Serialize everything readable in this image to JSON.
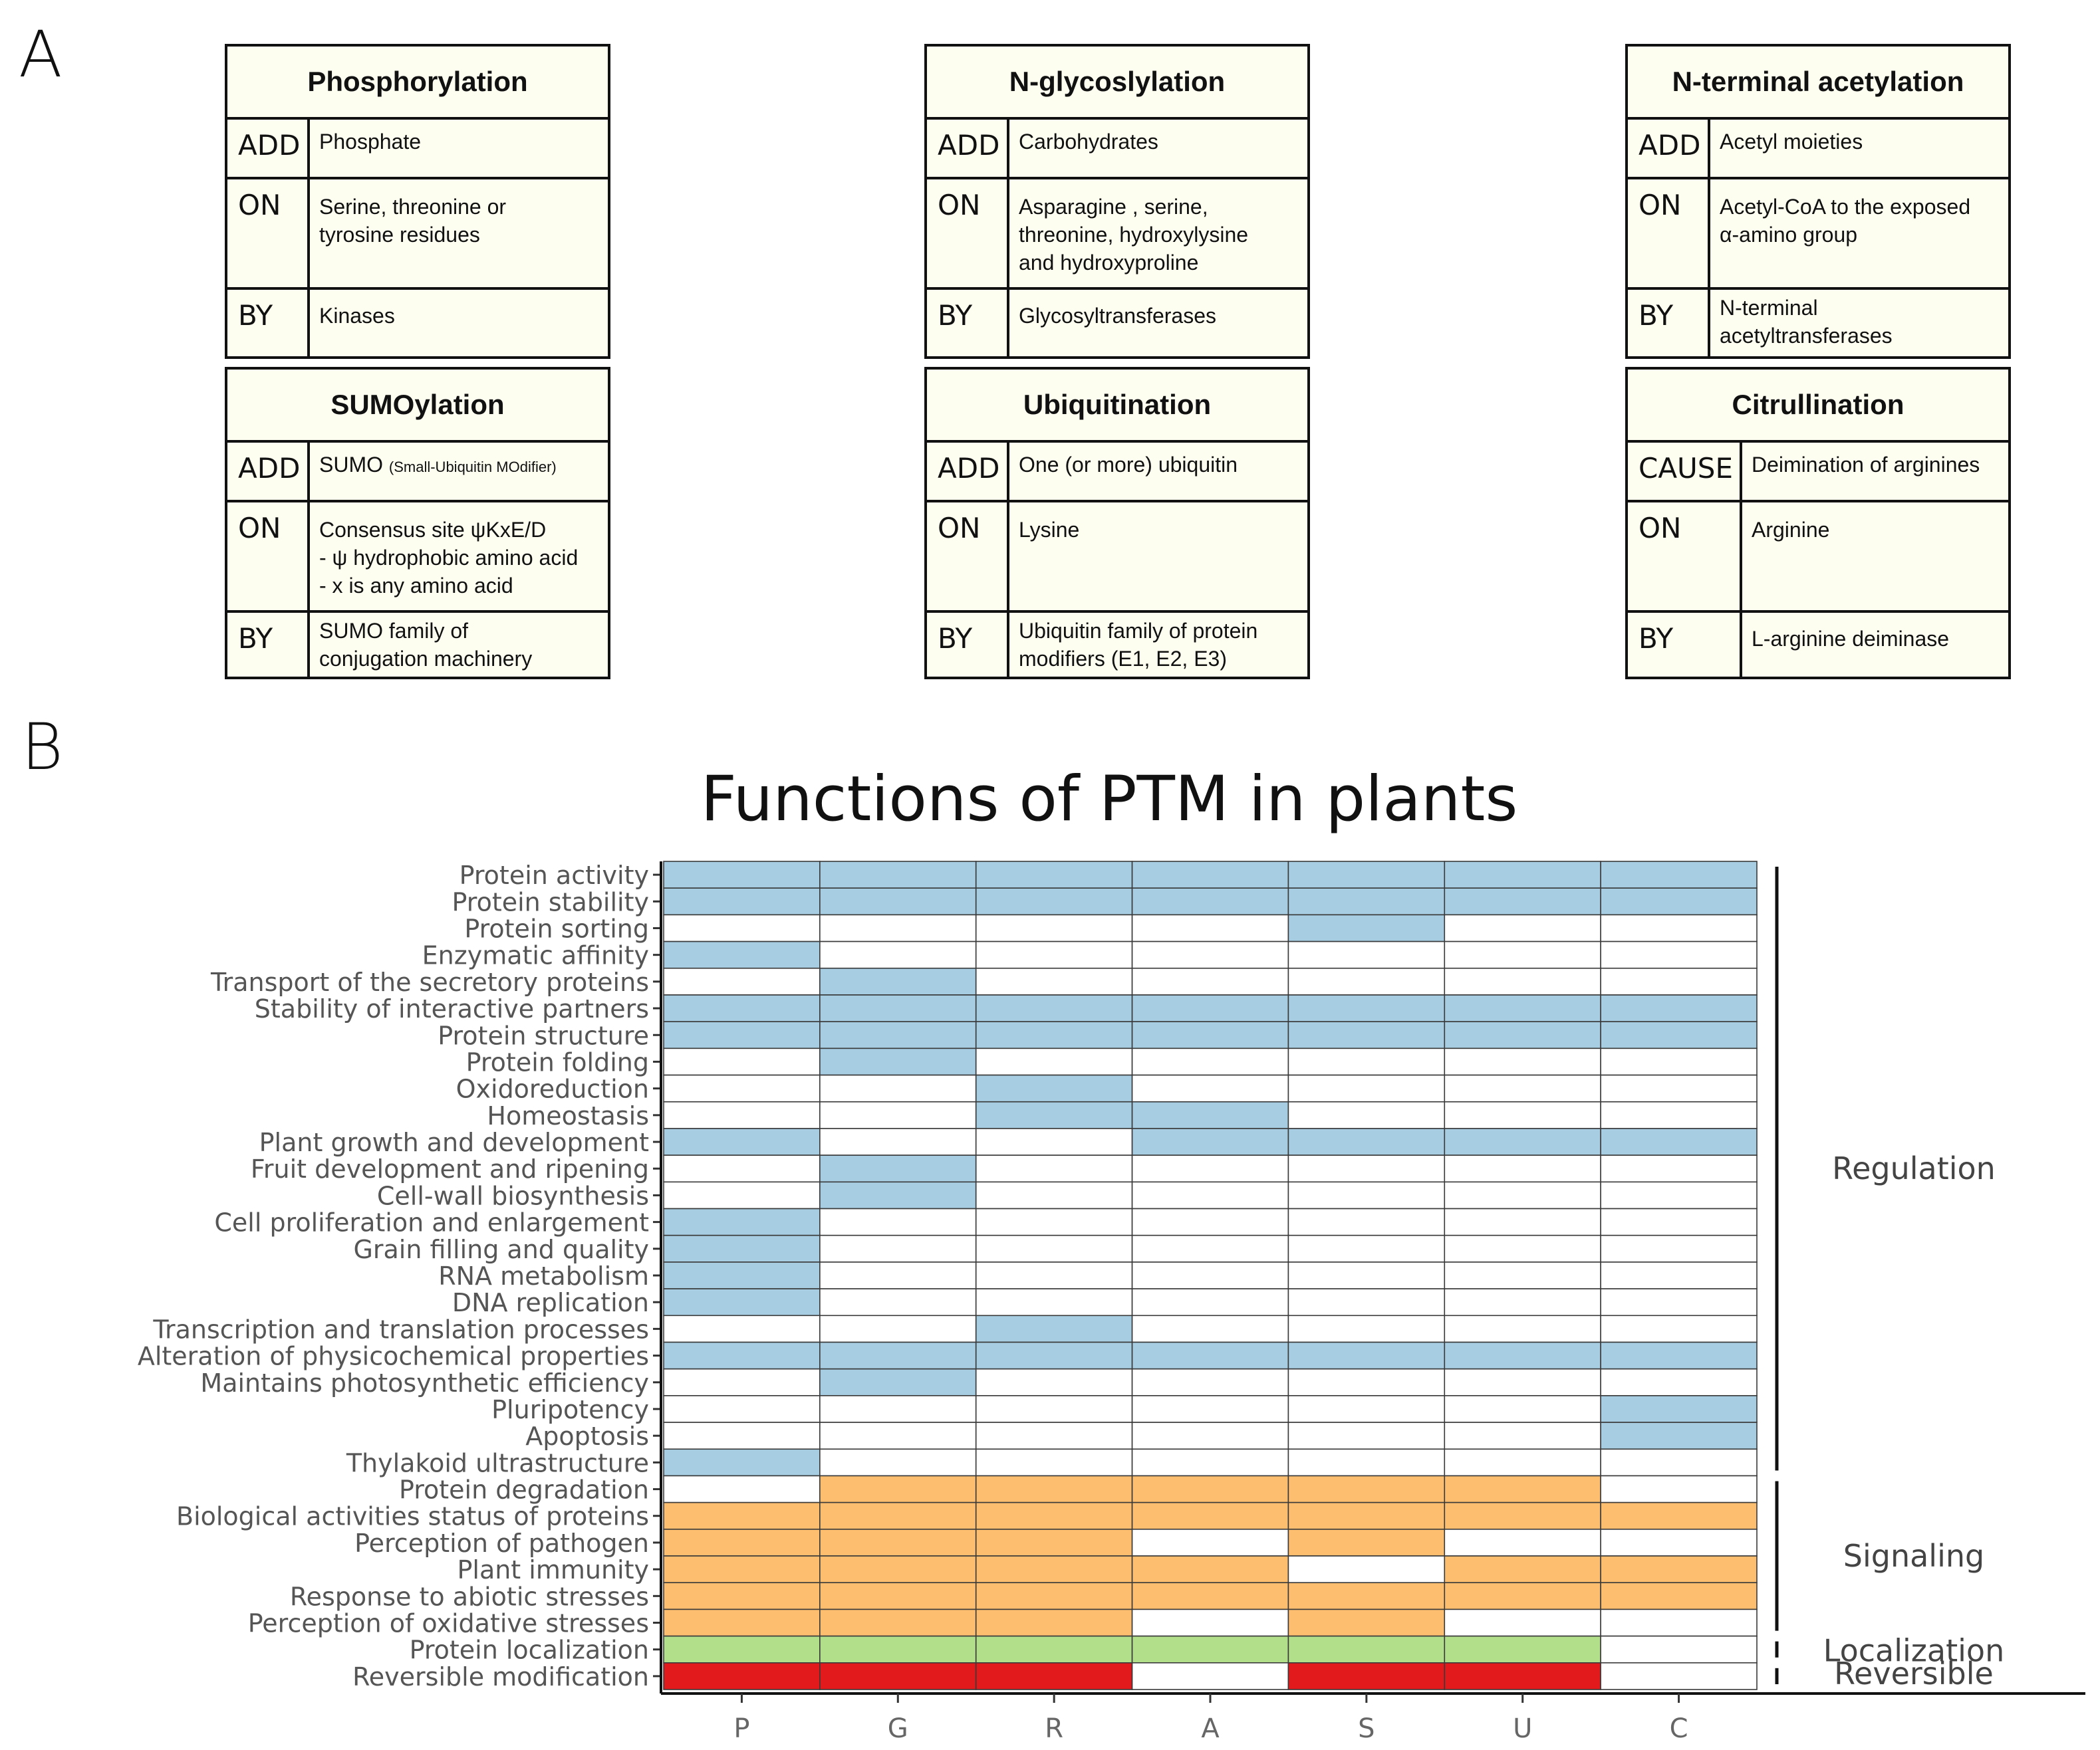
{
  "panel_a_label": "A",
  "panel_b_label": "B",
  "ptm_cards": [
    {
      "title": "Phosphorylation",
      "rows": [
        {
          "label": "ADD",
          "value": "Phosphate"
        },
        {
          "label": "ON",
          "value": "Serine, threonine or\ntyrosine residues"
        },
        {
          "label": "BY",
          "value": "Kinases"
        }
      ]
    },
    {
      "title": "N-glycoslylation",
      "rows": [
        {
          "label": "ADD",
          "value": "Carbohydrates"
        },
        {
          "label": "ON",
          "value": "Asparagine , serine,\nthreonine, hydroxylysine\nand hydroxyproline"
        },
        {
          "label": "BY",
          "value": "Glycosyltransferases"
        }
      ]
    },
    {
      "title": "N-terminal acetylation",
      "rows": [
        {
          "label": "ADD",
          "value": "Acetyl moieties"
        },
        {
          "label": "ON",
          "value": "Acetyl-CoA to the exposed\nα-amino group"
        },
        {
          "label": "BY",
          "value": "N-terminal\nacetyltransferases"
        }
      ]
    },
    {
      "title": "SUMOylation",
      "rows": [
        {
          "label": "ADD",
          "value": "SUMO",
          "note": "(Small-Ubiquitin MOdifier)"
        },
        {
          "label": "ON",
          "value": "Consensus site ψKxE/D\n- ψ hydrophobic amino acid\n- x is any amino acid"
        },
        {
          "label": "BY",
          "value": "SUMO family of\nconjugation machinery"
        }
      ]
    },
    {
      "title": "Ubiquitination",
      "rows": [
        {
          "label": "ADD",
          "value": "One (or more) ubiquitin"
        },
        {
          "label": "ON",
          "value": "Lysine"
        },
        {
          "label": "BY",
          "value": "Ubiquitin family of protein\nmodifiers (E1, E2, E3)"
        }
      ]
    },
    {
      "title": "Citrullination",
      "rows": [
        {
          "label": "CAUSE",
          "value": "Deimination of arginines"
        },
        {
          "label": "ON",
          "value": "Arginine"
        },
        {
          "label": "BY",
          "value": "L-arginine deiminase"
        }
      ]
    }
  ],
  "chart_data": {
    "type": "heatmap",
    "title": "Functions of PTM in plants",
    "columns": [
      "P",
      "G",
      "R",
      "A",
      "S",
      "U",
      "C"
    ],
    "rows": [
      "Protein activity",
      "Protein stability",
      "Protein sorting",
      "Enzymatic affinity",
      "Transport of the secretory proteins",
      "Stability of interactive partners",
      "Protein structure",
      "Protein folding",
      "Oxidoreduction",
      "Homeostasis",
      "Plant growth and development",
      "Fruit development and ripening",
      "Cell-wall biosynthesis",
      "Cell  proliferation  and  enlargement",
      "Grain  filling  and  quality",
      "RNA metabolism",
      "DNA  replication",
      "Transcription and translation processes",
      "Alteration of physicochemical properties",
      "Maintains photosynthetic efficiency",
      "Pluripotency",
      "Apoptosis",
      "Thylakoid ultrastructure",
      "Protein degradation",
      "Biological activities status of proteins",
      "Perception of pathogen",
      "Plant immunity",
      "Response to abiotic stresses",
      "Perception of oxidative stresses",
      "Protein localization",
      "Reversible modification"
    ],
    "matrix": [
      [
        1,
        1,
        1,
        1,
        1,
        1,
        1
      ],
      [
        1,
        1,
        1,
        1,
        1,
        1,
        1
      ],
      [
        0,
        0,
        0,
        0,
        1,
        0,
        0
      ],
      [
        1,
        0,
        0,
        0,
        0,
        0,
        0
      ],
      [
        0,
        1,
        0,
        0,
        0,
        0,
        0
      ],
      [
        1,
        1,
        1,
        1,
        1,
        1,
        1
      ],
      [
        1,
        1,
        1,
        1,
        1,
        1,
        1
      ],
      [
        0,
        1,
        0,
        0,
        0,
        0,
        0
      ],
      [
        0,
        0,
        1,
        0,
        0,
        0,
        0
      ],
      [
        0,
        0,
        1,
        1,
        0,
        0,
        0
      ],
      [
        1,
        0,
        0,
        1,
        1,
        1,
        1
      ],
      [
        0,
        1,
        0,
        0,
        0,
        0,
        0
      ],
      [
        0,
        1,
        0,
        0,
        0,
        0,
        0
      ],
      [
        1,
        0,
        0,
        0,
        0,
        0,
        0
      ],
      [
        1,
        0,
        0,
        0,
        0,
        0,
        0
      ],
      [
        1,
        0,
        0,
        0,
        0,
        0,
        0
      ],
      [
        1,
        0,
        0,
        0,
        0,
        0,
        0
      ],
      [
        0,
        0,
        1,
        0,
        0,
        0,
        0
      ],
      [
        1,
        1,
        1,
        1,
        1,
        1,
        1
      ],
      [
        0,
        1,
        0,
        0,
        0,
        0,
        0
      ],
      [
        0,
        0,
        0,
        0,
        0,
        0,
        1
      ],
      [
        0,
        0,
        0,
        0,
        0,
        0,
        1
      ],
      [
        1,
        0,
        0,
        0,
        0,
        0,
        0
      ],
      [
        0,
        1,
        1,
        1,
        1,
        1,
        0
      ],
      [
        1,
        1,
        1,
        1,
        1,
        1,
        1
      ],
      [
        1,
        1,
        1,
        0,
        1,
        0,
        0
      ],
      [
        1,
        1,
        1,
        1,
        0,
        1,
        1
      ],
      [
        1,
        1,
        1,
        1,
        1,
        1,
        1
      ],
      [
        1,
        1,
        1,
        0,
        1,
        0,
        0
      ],
      [
        1,
        1,
        1,
        1,
        1,
        1,
        0
      ],
      [
        1,
        1,
        1,
        0,
        1,
        1,
        0
      ]
    ],
    "groups": [
      {
        "name": "Regulation",
        "start": 0,
        "end": 22,
        "color": "#a6cde2"
      },
      {
        "name": "Signaling",
        "start": 23,
        "end": 28,
        "color": "#fdbf6f"
      },
      {
        "name": "Localization",
        "start": 29,
        "end": 29,
        "color": "#b2df8a"
      },
      {
        "name": "Reversible",
        "start": 30,
        "end": 30,
        "color": "#e31a1c"
      }
    ],
    "empty_color": "#ffffff",
    "legend": "right"
  }
}
